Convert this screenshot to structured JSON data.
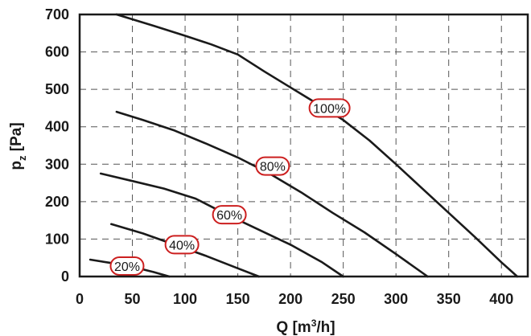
{
  "chart_data": {
    "type": "line",
    "xlabel": {
      "main": "Q [m",
      "sup": "3",
      "tail": "/h]"
    },
    "ylabel": {
      "main": "p",
      "sub": "z",
      "tail": " [Pa]"
    },
    "xlim": [
      0,
      425
    ],
    "ylim": [
      0,
      700
    ],
    "xticks": [
      0,
      50,
      100,
      150,
      200,
      250,
      300,
      350,
      400
    ],
    "yticks": [
      0,
      100,
      200,
      300,
      400,
      500,
      600,
      700
    ],
    "grid": true,
    "accent_color": "#cc1f1f",
    "series": [
      {
        "name": "100%",
        "label_at": [
          237,
          450
        ],
        "x": [
          35,
          70,
          100,
          125,
          150,
          175,
          200,
          225,
          250,
          275,
          300,
          325,
          350,
          375,
          400,
          415
        ],
        "y": [
          700,
          670,
          643,
          620,
          593,
          548,
          505,
          462,
          418,
          363,
          300,
          235,
          170,
          105,
          38,
          0
        ]
      },
      {
        "name": "80%",
        "label_at": [
          183,
          295
        ],
        "x": [
          35,
          60,
          90,
          120,
          150,
          180,
          210,
          240,
          270,
          300,
          330
        ],
        "y": [
          440,
          418,
          390,
          355,
          318,
          275,
          225,
          170,
          118,
          60,
          0
        ]
      },
      {
        "name": "60%",
        "label_at": [
          142,
          165
        ],
        "x": [
          20,
          50,
          80,
          110,
          140,
          170,
          200,
          230,
          250
        ],
        "y": [
          275,
          255,
          235,
          208,
          165,
          125,
          85,
          38,
          0
        ]
      },
      {
        "name": "40%",
        "label_at": [
          97,
          85
        ],
        "x": [
          30,
          60,
          90,
          120,
          150,
          170
        ],
        "y": [
          140,
          115,
          85,
          55,
          22,
          0
        ]
      },
      {
        "name": "20%",
        "label_at": [
          45,
          28
        ],
        "x": [
          10,
          30,
          50,
          70,
          85
        ],
        "y": [
          45,
          36,
          26,
          12,
          0
        ]
      }
    ]
  }
}
